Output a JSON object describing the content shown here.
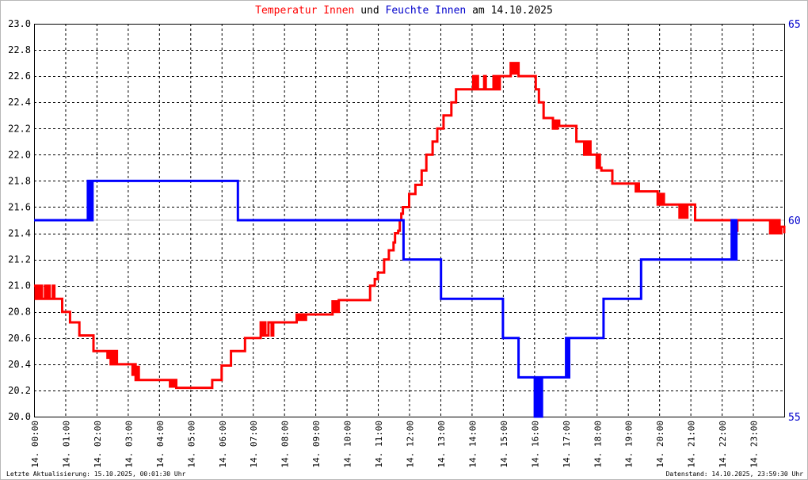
{
  "title": {
    "part1": "Temperatur Innen",
    "part2": "und",
    "part3": "Feuchte Innen",
    "part4": "am 14.10.2025"
  },
  "footer": {
    "left": "Letzte Aktualisierung: 15.10.2025, 00:01:30 Uhr",
    "right": "Datenstand: 14.10.2025, 23:59:30 Uhr"
  },
  "colors": {
    "temperature": "#ff0000",
    "humidity": "#0000ff",
    "grid": "#000000",
    "axis_right_labels": "#0000cc"
  },
  "chart_data": {
    "type": "line",
    "title": "Temperatur Innen und Feuchte Innen am 14.10.2025",
    "grid": true,
    "x_range_hours": [
      0,
      24
    ],
    "x_ticks": [
      "14. 00:00",
      "14. 01:00",
      "14. 02:00",
      "14. 03:00",
      "14. 04:00",
      "14. 05:00",
      "14. 06:00",
      "14. 07:00",
      "14. 08:00",
      "14. 09:00",
      "14. 10:00",
      "14. 11:00",
      "14. 12:00",
      "14. 13:00",
      "14. 14:00",
      "14. 15:00",
      "14. 16:00",
      "14. 17:00",
      "14. 18:00",
      "14. 19:00",
      "14. 20:00",
      "14. 21:00",
      "14. 22:00",
      "14. 23:00"
    ],
    "y_left": {
      "range": [
        20.0,
        23.0
      ],
      "ticks": [
        "20.0",
        "20.2",
        "20.4",
        "20.6",
        "20.8",
        "21.0",
        "21.2",
        "21.4",
        "21.6",
        "21.8",
        "22.0",
        "22.2",
        "22.4",
        "22.6",
        "22.8",
        "23.0"
      ]
    },
    "y_right": {
      "range": [
        55,
        65
      ],
      "ticks": [
        "55",
        "60",
        "65"
      ]
    },
    "series": [
      {
        "name": "Temperatur Innen",
        "axis": "left",
        "color": "#ff0000",
        "points": [
          [
            0.0,
            21.0
          ],
          [
            0.05,
            20.9
          ],
          [
            0.1,
            21.0
          ],
          [
            0.15,
            20.9
          ],
          [
            0.2,
            21.0
          ],
          [
            0.25,
            20.9
          ],
          [
            0.35,
            21.0
          ],
          [
            0.4,
            20.9
          ],
          [
            0.45,
            21.0
          ],
          [
            0.5,
            20.9
          ],
          [
            0.6,
            21.0
          ],
          [
            0.65,
            20.9
          ],
          [
            0.8,
            20.9
          ],
          [
            0.9,
            20.8
          ],
          [
            1.1,
            20.8
          ],
          [
            1.15,
            20.72
          ],
          [
            1.4,
            20.72
          ],
          [
            1.45,
            20.62
          ],
          [
            1.85,
            20.62
          ],
          [
            1.9,
            20.5
          ],
          [
            2.3,
            20.5
          ],
          [
            2.35,
            20.45
          ],
          [
            2.4,
            20.5
          ],
          [
            2.45,
            20.4
          ],
          [
            2.5,
            20.5
          ],
          [
            2.55,
            20.4
          ],
          [
            2.6,
            20.5
          ],
          [
            2.65,
            20.4
          ],
          [
            3.1,
            20.4
          ],
          [
            3.15,
            20.32
          ],
          [
            3.2,
            20.4
          ],
          [
            3.25,
            20.28
          ],
          [
            3.3,
            20.38
          ],
          [
            3.35,
            20.28
          ],
          [
            4.3,
            20.28
          ],
          [
            4.35,
            20.23
          ],
          [
            4.4,
            20.28
          ],
          [
            4.45,
            20.23
          ],
          [
            4.5,
            20.28
          ],
          [
            4.55,
            20.22
          ],
          [
            5.6,
            20.22
          ],
          [
            5.7,
            20.28
          ],
          [
            5.9,
            20.28
          ],
          [
            6.0,
            20.39
          ],
          [
            6.2,
            20.39
          ],
          [
            6.3,
            20.5
          ],
          [
            6.7,
            20.5
          ],
          [
            6.75,
            20.6
          ],
          [
            7.2,
            20.6
          ],
          [
            7.25,
            20.72
          ],
          [
            7.3,
            20.62
          ],
          [
            7.35,
            20.72
          ],
          [
            7.4,
            20.62
          ],
          [
            7.5,
            20.72
          ],
          [
            7.6,
            20.62
          ],
          [
            7.65,
            20.72
          ],
          [
            8.35,
            20.72
          ],
          [
            8.4,
            20.78
          ],
          [
            8.45,
            20.74
          ],
          [
            8.5,
            20.78
          ],
          [
            8.55,
            20.74
          ],
          [
            8.6,
            20.78
          ],
          [
            8.65,
            20.74
          ],
          [
            8.7,
            20.78
          ],
          [
            9.5,
            20.78
          ],
          [
            9.55,
            20.88
          ],
          [
            9.6,
            20.8
          ],
          [
            9.65,
            20.88
          ],
          [
            9.7,
            20.8
          ],
          [
            9.75,
            20.89
          ],
          [
            10.7,
            20.89
          ],
          [
            10.75,
            21.0
          ],
          [
            10.85,
            21.0
          ],
          [
            10.9,
            21.05
          ],
          [
            11.0,
            21.1
          ],
          [
            11.15,
            21.1
          ],
          [
            11.2,
            21.2
          ],
          [
            11.3,
            21.2
          ],
          [
            11.35,
            21.27
          ],
          [
            11.45,
            21.27
          ],
          [
            11.5,
            21.33
          ],
          [
            11.55,
            21.4
          ],
          [
            11.65,
            21.42
          ],
          [
            11.7,
            21.5
          ],
          [
            11.75,
            21.55
          ],
          [
            11.8,
            21.6
          ],
          [
            11.95,
            21.6
          ],
          [
            12.0,
            21.7
          ],
          [
            12.1,
            21.7
          ],
          [
            12.2,
            21.77
          ],
          [
            12.35,
            21.77
          ],
          [
            12.4,
            21.88
          ],
          [
            12.5,
            21.88
          ],
          [
            12.55,
            22.0
          ],
          [
            12.7,
            22.0
          ],
          [
            12.75,
            22.1
          ],
          [
            12.85,
            22.1
          ],
          [
            12.9,
            22.2
          ],
          [
            13.05,
            22.2
          ],
          [
            13.1,
            22.3
          ],
          [
            13.3,
            22.3
          ],
          [
            13.35,
            22.4
          ],
          [
            13.45,
            22.4
          ],
          [
            13.5,
            22.5
          ],
          [
            14.0,
            22.5
          ],
          [
            14.05,
            22.6
          ],
          [
            14.1,
            22.5
          ],
          [
            14.15,
            22.6
          ],
          [
            14.2,
            22.5
          ],
          [
            14.3,
            22.5
          ],
          [
            14.4,
            22.6
          ],
          [
            14.45,
            22.5
          ],
          [
            14.65,
            22.5
          ],
          [
            14.7,
            22.6
          ],
          [
            14.75,
            22.5
          ],
          [
            14.8,
            22.6
          ],
          [
            14.85,
            22.5
          ],
          [
            14.9,
            22.6
          ],
          [
            15.2,
            22.6
          ],
          [
            15.25,
            22.7
          ],
          [
            15.3,
            22.62
          ],
          [
            15.35,
            22.7
          ],
          [
            15.4,
            22.62
          ],
          [
            15.45,
            22.7
          ],
          [
            15.5,
            22.6
          ],
          [
            16.0,
            22.6
          ],
          [
            16.05,
            22.5
          ],
          [
            16.1,
            22.5
          ],
          [
            16.15,
            22.4
          ],
          [
            16.25,
            22.4
          ],
          [
            16.3,
            22.28
          ],
          [
            16.55,
            22.28
          ],
          [
            16.6,
            22.2
          ],
          [
            16.65,
            22.26
          ],
          [
            16.7,
            22.2
          ],
          [
            16.75,
            22.26
          ],
          [
            16.8,
            22.22
          ],
          [
            17.3,
            22.22
          ],
          [
            17.35,
            22.1
          ],
          [
            17.55,
            22.1
          ],
          [
            17.6,
            22.0
          ],
          [
            17.65,
            22.1
          ],
          [
            17.7,
            22.0
          ],
          [
            17.75,
            22.1
          ],
          [
            17.8,
            22.0
          ],
          [
            17.95,
            22.0
          ],
          [
            18.0,
            21.9
          ],
          [
            18.05,
            22.0
          ],
          [
            18.1,
            21.9
          ],
          [
            18.15,
            21.88
          ],
          [
            18.45,
            21.88
          ],
          [
            18.5,
            21.78
          ],
          [
            18.7,
            21.78
          ],
          [
            18.8,
            21.78
          ],
          [
            19.2,
            21.78
          ],
          [
            19.25,
            21.72
          ],
          [
            19.3,
            21.78
          ],
          [
            19.35,
            21.72
          ],
          [
            19.9,
            21.72
          ],
          [
            19.95,
            21.62
          ],
          [
            20.0,
            21.7
          ],
          [
            20.05,
            21.62
          ],
          [
            20.1,
            21.7
          ],
          [
            20.15,
            21.62
          ],
          [
            20.6,
            21.62
          ],
          [
            20.65,
            21.52
          ],
          [
            20.7,
            21.62
          ],
          [
            20.75,
            21.52
          ],
          [
            20.8,
            21.62
          ],
          [
            20.85,
            21.52
          ],
          [
            20.9,
            21.62
          ],
          [
            21.1,
            21.62
          ],
          [
            21.15,
            21.5
          ],
          [
            22.3,
            21.5
          ],
          [
            22.35,
            21.4
          ],
          [
            22.4,
            21.5
          ],
          [
            22.45,
            21.42
          ],
          [
            22.5,
            21.5
          ],
          [
            23.5,
            21.5
          ],
          [
            23.55,
            21.4
          ],
          [
            23.6,
            21.5
          ],
          [
            23.65,
            21.4
          ],
          [
            23.7,
            21.5
          ],
          [
            23.75,
            21.4
          ],
          [
            23.8,
            21.5
          ],
          [
            23.85,
            21.4
          ],
          [
            23.9,
            21.45
          ],
          [
            24.0,
            21.4
          ]
        ]
      },
      {
        "name": "Feuchte Innen",
        "axis": "right",
        "color": "#0000ff",
        "points": [
          [
            0.0,
            60
          ],
          [
            1.7,
            60
          ],
          [
            1.72,
            61
          ],
          [
            1.75,
            60
          ],
          [
            1.77,
            61
          ],
          [
            1.8,
            60
          ],
          [
            1.82,
            61
          ],
          [
            1.85,
            60
          ],
          [
            1.87,
            61
          ],
          [
            1.9,
            61
          ],
          [
            6.5,
            61
          ],
          [
            6.52,
            60
          ],
          [
            11.8,
            60
          ],
          [
            11.82,
            59
          ],
          [
            13.0,
            59
          ],
          [
            13.02,
            58
          ],
          [
            14.95,
            58
          ],
          [
            15.0,
            57
          ],
          [
            15.45,
            57
          ],
          [
            15.5,
            56
          ],
          [
            16.0,
            56
          ],
          [
            16.02,
            55
          ],
          [
            16.05,
            56
          ],
          [
            16.07,
            55
          ],
          [
            16.1,
            56
          ],
          [
            16.12,
            55
          ],
          [
            16.15,
            56
          ],
          [
            16.17,
            55
          ],
          [
            16.2,
            56
          ],
          [
            16.22,
            55
          ],
          [
            16.25,
            56
          ],
          [
            17.0,
            56
          ],
          [
            17.02,
            57
          ],
          [
            17.05,
            56
          ],
          [
            17.07,
            57
          ],
          [
            17.1,
            56
          ],
          [
            17.12,
            57
          ],
          [
            17.15,
            57
          ],
          [
            18.2,
            57
          ],
          [
            18.22,
            58
          ],
          [
            19.4,
            58
          ],
          [
            19.42,
            59
          ],
          [
            22.3,
            59
          ],
          [
            22.32,
            60
          ],
          [
            22.35,
            59
          ],
          [
            22.37,
            60
          ],
          [
            22.4,
            59
          ],
          [
            22.42,
            60
          ],
          [
            22.45,
            59
          ],
          [
            22.47,
            60
          ],
          [
            22.5,
            60
          ]
        ]
      }
    ]
  }
}
